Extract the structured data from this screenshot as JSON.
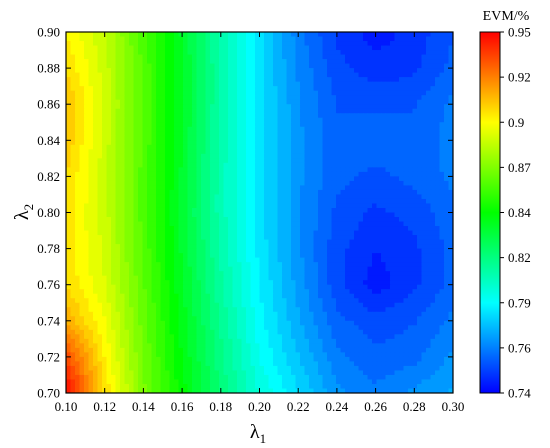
{
  "chart_data": {
    "type": "heatmap",
    "title": "",
    "x_axis": {
      "label_base": "λ",
      "label_sub": "1",
      "range": [
        0.1,
        0.3
      ],
      "ticks": [
        "0.10",
        "0.12",
        "0.14",
        "0.16",
        "0.18",
        "0.20",
        "0.22",
        "0.24",
        "0.26",
        "0.28",
        "0.30"
      ]
    },
    "y_axis": {
      "label_base": "λ",
      "label_sub": "2",
      "range": [
        0.7,
        0.9
      ],
      "ticks": [
        "0.70",
        "0.72",
        "0.74",
        "0.76",
        "0.78",
        "0.80",
        "0.82",
        "0.84",
        "0.86",
        "0.88",
        "0.90"
      ]
    },
    "colorbar": {
      "title": "EVM/%",
      "range": [
        0.74,
        0.95
      ],
      "ticks": [
        "0.74",
        "0.76",
        "0.79",
        "0.82",
        "0.84",
        "0.87",
        "0.9",
        "0.92",
        "0.95"
      ],
      "colormap": [
        "#0000ff",
        "#00ffff",
        "#00ff00",
        "#ffff00",
        "#ff0000"
      ]
    },
    "x": [
      0.1,
      0.12,
      0.14,
      0.16,
      0.18,
      0.2,
      0.22,
      0.24,
      0.26,
      0.28,
      0.3
    ],
    "y": [
      0.7,
      0.72,
      0.74,
      0.76,
      0.78,
      0.8,
      0.82,
      0.84,
      0.86,
      0.88,
      0.9
    ],
    "z": [
      [
        0.95,
        0.905,
        0.87,
        0.845,
        0.82,
        0.8,
        0.785,
        0.77,
        0.765,
        0.77,
        0.775
      ],
      [
        0.935,
        0.9,
        0.868,
        0.842,
        0.818,
        0.795,
        0.78,
        0.765,
        0.76,
        0.762,
        0.77
      ],
      [
        0.915,
        0.895,
        0.866,
        0.84,
        0.815,
        0.792,
        0.775,
        0.76,
        0.755,
        0.758,
        0.765
      ],
      [
        0.905,
        0.89,
        0.864,
        0.838,
        0.812,
        0.79,
        0.772,
        0.755,
        0.745,
        0.752,
        0.76
      ],
      [
        0.903,
        0.888,
        0.862,
        0.836,
        0.81,
        0.788,
        0.77,
        0.755,
        0.748,
        0.752,
        0.76
      ],
      [
        0.903,
        0.887,
        0.861,
        0.835,
        0.808,
        0.787,
        0.77,
        0.757,
        0.752,
        0.755,
        0.762
      ],
      [
        0.905,
        0.887,
        0.861,
        0.836,
        0.808,
        0.787,
        0.77,
        0.76,
        0.757,
        0.76,
        0.765
      ],
      [
        0.91,
        0.887,
        0.862,
        0.837,
        0.809,
        0.787,
        0.77,
        0.76,
        0.762,
        0.76,
        0.766
      ],
      [
        0.912,
        0.888,
        0.862,
        0.838,
        0.81,
        0.787,
        0.77,
        0.758,
        0.757,
        0.758,
        0.765
      ],
      [
        0.905,
        0.887,
        0.862,
        0.838,
        0.81,
        0.786,
        0.768,
        0.755,
        0.75,
        0.752,
        0.76
      ],
      [
        0.9,
        0.885,
        0.86,
        0.836,
        0.81,
        0.786,
        0.766,
        0.752,
        0.745,
        0.75,
        0.758
      ]
    ]
  }
}
